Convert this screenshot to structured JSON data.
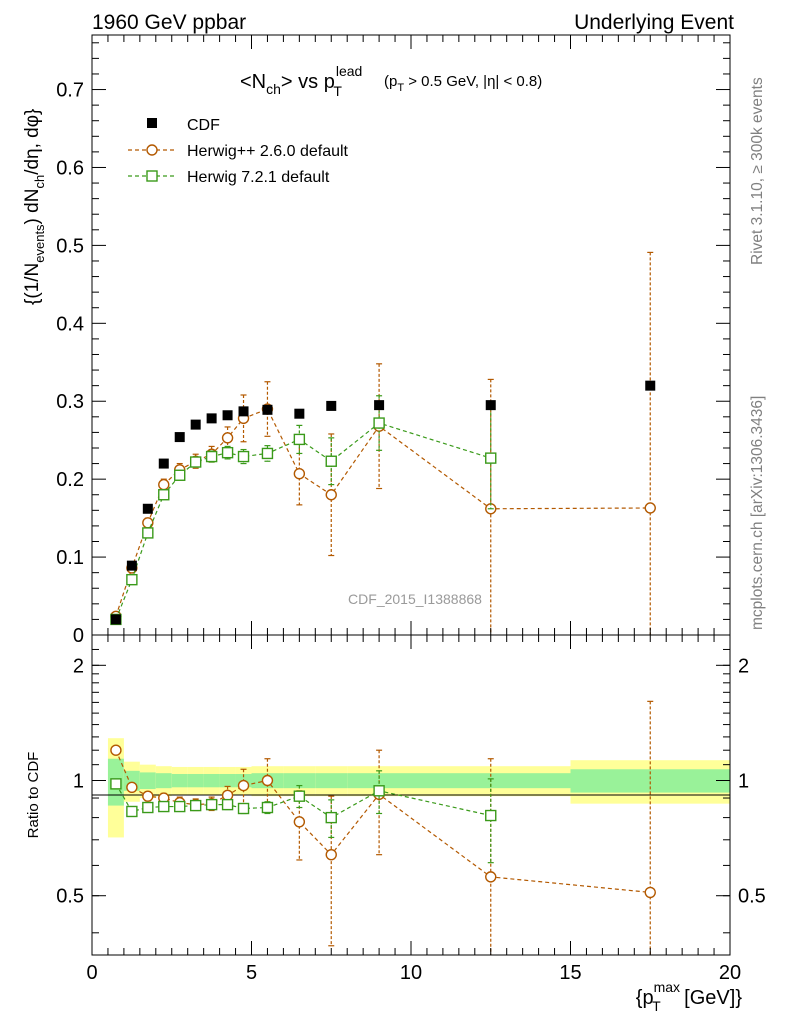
{
  "header": {
    "left": "1960 GeV ppbar",
    "right": "Underlying Event"
  },
  "side": {
    "rivet": "Rivet 3.1.10, ≥ 300k events",
    "mcplots": "mcplots.cern.ch [arXiv:1306.3436]"
  },
  "watermark": "CDF_2015_I1388868",
  "colors": {
    "data": "#000000",
    "herwigpp": "#b35900",
    "herwig7": "#3a9a1a",
    "band_inner": "#99f299",
    "band_outer": "#ffff99"
  },
  "chart_data": [
    {
      "type": "scatter",
      "title_parts": {
        "lt": "<N",
        "ch": "ch",
        "gt_vs": "> vs p",
        "T": "T",
        "lead": "lead",
        "cut_a": "(p",
        "cut_T": "T",
        "cut_b": " > 0.5 GeV, ",
        "cut_c": "|η| < 0.8)"
      },
      "ylabel_parts": {
        "a": "{(1/N",
        "events": "events",
        "b": ") dN",
        "ch": "ch",
        "c": "/dη, dφ}"
      },
      "xlim": [
        0,
        20
      ],
      "ylim": [
        0,
        0.77
      ],
      "yticks": [
        0,
        0.1,
        0.2,
        0.3,
        0.4,
        0.5,
        0.6,
        0.7
      ],
      "ytick_labels": [
        "0",
        "0.1",
        "0.2",
        "0.3",
        "0.4",
        "0.5",
        "0.6",
        "0.7"
      ],
      "legend_position": "top-left",
      "series": [
        {
          "name": "CDF",
          "style": "data",
          "x": [
            0.75,
            1.25,
            1.75,
            2.25,
            2.75,
            3.25,
            3.75,
            4.25,
            4.75,
            5.5,
            6.5,
            7.5,
            9.0,
            12.5,
            17.5
          ],
          "y": [
            0.02,
            0.089,
            0.162,
            0.22,
            0.254,
            0.27,
            0.278,
            0.282,
            0.287,
            0.289,
            0.284,
            0.294,
            0.295,
            0.295,
            0.32
          ],
          "yerr": [
            0,
            0,
            0,
            0,
            0,
            0,
            0,
            0,
            0,
            0,
            0,
            0,
            0,
            0,
            0
          ]
        },
        {
          "name": "Herwig++ 2.6.0 default",
          "style": "herwigpp",
          "x": [
            0.75,
            1.25,
            1.75,
            2.25,
            2.75,
            3.25,
            3.75,
            4.25,
            4.75,
            5.5,
            6.5,
            7.5,
            9.0,
            12.5,
            17.5
          ],
          "y": [
            0.024,
            0.086,
            0.144,
            0.193,
            0.212,
            0.223,
            0.232,
            0.253,
            0.278,
            0.29,
            0.207,
            0.18,
            0.268,
            0.162,
            0.163
          ],
          "yerr": [
            0.003,
            0.005,
            0.006,
            0.007,
            0.008,
            0.009,
            0.01,
            0.014,
            0.03,
            0.035,
            0.04,
            0.078,
            0.08,
            0.166,
            0.328
          ]
        },
        {
          "name": "Herwig 7.2.1 default",
          "style": "herwig7",
          "x": [
            0.75,
            1.25,
            1.75,
            2.25,
            2.75,
            3.25,
            3.75,
            4.25,
            4.75,
            5.5,
            6.5,
            7.5,
            9.0,
            12.5
          ],
          "y": [
            0.02,
            0.071,
            0.131,
            0.18,
            0.205,
            0.222,
            0.229,
            0.234,
            0.229,
            0.233,
            0.251,
            0.223,
            0.272,
            0.227
          ],
          "yerr": [
            0.002,
            0.003,
            0.004,
            0.005,
            0.006,
            0.006,
            0.007,
            0.008,
            0.009,
            0.01,
            0.018,
            0.03,
            0.035,
            0.065
          ]
        }
      ]
    },
    {
      "type": "scatter",
      "ylabel": "Ratio to CDF",
      "xlabel_parts": {
        "a": "{p",
        "T": "T",
        "max": "max",
        "b": " [GeV]}"
      },
      "xlim": [
        0,
        20
      ],
      "ylim": [
        0.35,
        2.4
      ],
      "log_y": true,
      "xticks": [
        0,
        5,
        10,
        15,
        20
      ],
      "xtick_labels": [
        "0",
        "5",
        "10",
        "15",
        "20"
      ],
      "yticks": [
        0.5,
        1,
        2
      ],
      "ytick_labels": [
        "0.5",
        "1",
        "2"
      ],
      "bands": {
        "x_edges": [
          0.5,
          1.0,
          1.5,
          2.0,
          2.5,
          3.0,
          3.5,
          4.0,
          4.5,
          5.0,
          6.0,
          7.0,
          8.0,
          10.0,
          15.0,
          20.0
        ],
        "inner": [
          0.14,
          0.06,
          0.05,
          0.045,
          0.04,
          0.04,
          0.04,
          0.04,
          0.04,
          0.045,
          0.045,
          0.045,
          0.045,
          0.045,
          0.07
        ],
        "outer": [
          0.29,
          0.12,
          0.1,
          0.09,
          0.085,
          0.085,
          0.085,
          0.085,
          0.085,
          0.09,
          0.09,
          0.09,
          0.09,
          0.09,
          0.13
        ]
      },
      "series": [
        {
          "name": "Herwig++ 2.6.0 default",
          "style": "herwigpp",
          "x": [
            0.75,
            1.25,
            1.75,
            2.25,
            2.75,
            3.25,
            3.75,
            4.25,
            4.75,
            5.5,
            6.5,
            7.5,
            9.0,
            12.5,
            17.5
          ],
          "y": [
            1.2,
            0.96,
            0.91,
            0.9,
            0.875,
            0.865,
            0.87,
            0.915,
            0.97,
            1.0,
            0.78,
            0.64,
            0.92,
            0.56,
            0.51
          ],
          "yerr": [
            0.015,
            0.02,
            0.025,
            0.025,
            0.03,
            0.03,
            0.035,
            0.05,
            0.1,
            0.14,
            0.16,
            0.27,
            0.28,
            0.58,
            1.1
          ]
        },
        {
          "name": "Herwig 7.2.1 default",
          "style": "herwig7",
          "x": [
            0.75,
            1.25,
            1.75,
            2.25,
            2.75,
            3.25,
            3.75,
            4.25,
            4.75,
            5.5,
            6.5,
            7.5,
            9.0,
            12.5
          ],
          "y": [
            0.98,
            0.83,
            0.85,
            0.855,
            0.855,
            0.86,
            0.865,
            0.865,
            0.845,
            0.85,
            0.91,
            0.8,
            0.94,
            0.81
          ],
          "yerr": [
            0.01,
            0.012,
            0.015,
            0.015,
            0.015,
            0.02,
            0.02,
            0.025,
            0.025,
            0.03,
            0.06,
            0.09,
            0.12,
            0.2
          ]
        }
      ]
    }
  ]
}
